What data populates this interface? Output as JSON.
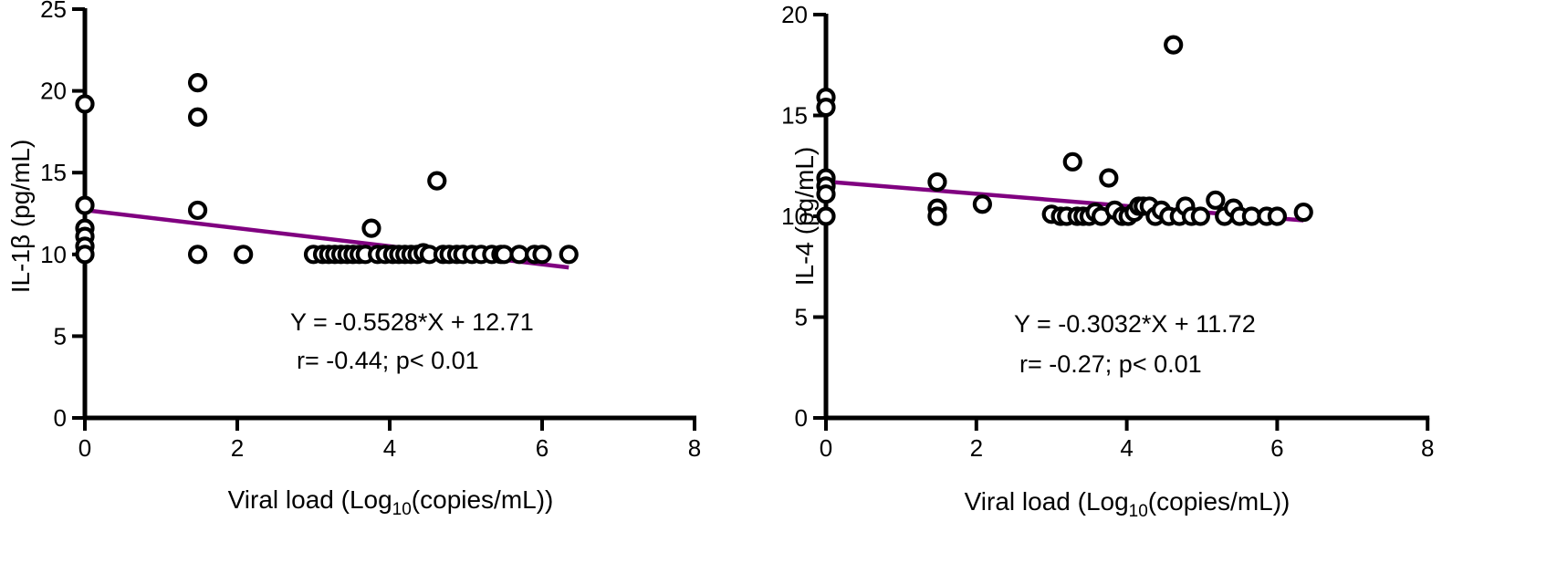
{
  "chart_data": [
    {
      "type": "scatter",
      "xlabel_prefix": "Viral load (Log",
      "xlabel_sub": "10",
      "xlabel_suffix": "(copies/mL))",
      "ylabel": "IL-1β (pg/mL)",
      "xlim": [
        0,
        8
      ],
      "ylim": [
        0,
        25
      ],
      "xticks": [
        "0",
        "2",
        "4",
        "6",
        "8"
      ],
      "yticks": [
        "0",
        "5",
        "10",
        "15",
        "20",
        "25"
      ],
      "equation": "Y = -0.5528*X + 12.71",
      "stats": "r= -0.44; p< 0.01",
      "line_color": "#800080",
      "fit": {
        "slope": -0.5528,
        "intercept": 12.71,
        "x_range": [
          0,
          6.35
        ]
      },
      "points": [
        [
          0,
          19.2
        ],
        [
          0,
          13.0
        ],
        [
          0,
          11.6
        ],
        [
          0,
          11.1
        ],
        [
          0,
          10.5
        ],
        [
          0,
          10.0
        ],
        [
          1.48,
          20.5
        ],
        [
          1.48,
          18.4
        ],
        [
          1.48,
          12.7
        ],
        [
          1.48,
          10.0
        ],
        [
          2.08,
          10.0
        ],
        [
          3.0,
          10.0
        ],
        [
          3.12,
          10.0
        ],
        [
          3.2,
          10.0
        ],
        [
          3.28,
          10.0
        ],
        [
          3.36,
          10.0
        ],
        [
          3.44,
          10.0
        ],
        [
          3.52,
          10.0
        ],
        [
          3.6,
          10.0
        ],
        [
          3.68,
          10.0
        ],
        [
          3.76,
          11.6
        ],
        [
          3.84,
          10.0
        ],
        [
          3.94,
          10.0
        ],
        [
          4.04,
          10.0
        ],
        [
          4.12,
          10.0
        ],
        [
          4.2,
          10.0
        ],
        [
          4.28,
          10.0
        ],
        [
          4.36,
          10.0
        ],
        [
          4.44,
          10.1
        ],
        [
          4.52,
          10.0
        ],
        [
          4.62,
          14.5
        ],
        [
          4.7,
          10.0
        ],
        [
          4.78,
          10.0
        ],
        [
          4.88,
          10.0
        ],
        [
          4.96,
          10.0
        ],
        [
          5.08,
          10.0
        ],
        [
          5.2,
          10.0
        ],
        [
          5.34,
          10.0
        ],
        [
          5.46,
          10.0
        ],
        [
          5.5,
          10.0
        ],
        [
          5.7,
          10.0
        ],
        [
          5.9,
          10.0
        ],
        [
          6.0,
          10.0
        ],
        [
          6.35,
          10.0
        ]
      ]
    },
    {
      "type": "scatter",
      "xlabel_prefix": "Viral load (Log",
      "xlabel_sub": "10",
      "xlabel_suffix": "(copies/mL))",
      "ylabel": "IL-4 (pg/mL)",
      "xlim": [
        0,
        8
      ],
      "ylim": [
        0,
        20
      ],
      "xticks": [
        "0",
        "2",
        "4",
        "6",
        "8"
      ],
      "yticks": [
        "0",
        "5",
        "10",
        "15",
        "20"
      ],
      "equation": "Y = -0.3032*X + 11.72",
      "stats": "r= -0.27; p< 0.01",
      "line_color": "#800080",
      "fit": {
        "slope": -0.3032,
        "intercept": 11.72,
        "x_range": [
          0,
          6.35
        ]
      },
      "points": [
        [
          0,
          15.9
        ],
        [
          0,
          15.4
        ],
        [
          0,
          11.9
        ],
        [
          0,
          11.5
        ],
        [
          0,
          11.1
        ],
        [
          0,
          10.0
        ],
        [
          1.48,
          11.7
        ],
        [
          1.48,
          10.4
        ],
        [
          1.48,
          10.0
        ],
        [
          2.08,
          10.6
        ],
        [
          3.0,
          10.1
        ],
        [
          3.12,
          10.0
        ],
        [
          3.2,
          10.0
        ],
        [
          3.28,
          12.7
        ],
        [
          3.34,
          10.0
        ],
        [
          3.42,
          10.0
        ],
        [
          3.5,
          10.0
        ],
        [
          3.58,
          10.2
        ],
        [
          3.66,
          10.0
        ],
        [
          3.76,
          11.9
        ],
        [
          3.84,
          10.3
        ],
        [
          3.94,
          10.0
        ],
        [
          4.02,
          10.0
        ],
        [
          4.1,
          10.2
        ],
        [
          4.16,
          10.5
        ],
        [
          4.22,
          10.5
        ],
        [
          4.3,
          10.5
        ],
        [
          4.38,
          10.0
        ],
        [
          4.46,
          10.3
        ],
        [
          4.56,
          10.0
        ],
        [
          4.62,
          18.5
        ],
        [
          4.7,
          10.0
        ],
        [
          4.78,
          10.5
        ],
        [
          4.86,
          10.0
        ],
        [
          4.98,
          10.0
        ],
        [
          5.18,
          10.8
        ],
        [
          5.3,
          10.0
        ],
        [
          5.42,
          10.4
        ],
        [
          5.5,
          10.0
        ],
        [
          5.66,
          10.0
        ],
        [
          5.86,
          10.0
        ],
        [
          6.0,
          10.0
        ],
        [
          6.35,
          10.2
        ]
      ]
    }
  ]
}
